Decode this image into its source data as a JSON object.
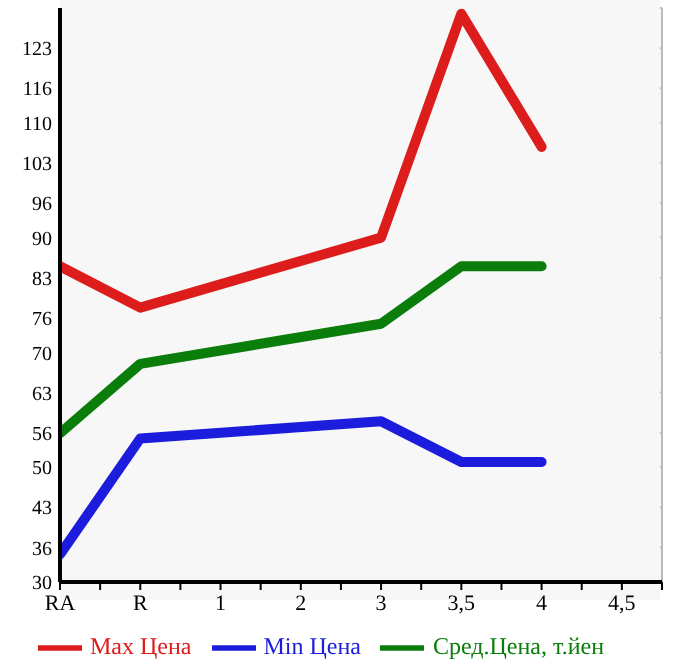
{
  "chart_data": {
    "type": "line",
    "categories": [
      "RA",
      "R",
      "1",
      "2",
      "3",
      "3,5",
      "4",
      "4,5"
    ],
    "series": [
      {
        "name": "Max Цена",
        "color": "#dd1c1c",
        "values": [
          85,
          77.8,
          null,
          null,
          90,
          129,
          105.8,
          null
        ]
      },
      {
        "name": "Min Цена",
        "color": "#1c1cdd",
        "values": [
          34.8,
          55,
          null,
          null,
          58,
          50.9,
          50.9,
          null
        ]
      },
      {
        "name": "Сред.Цена, т.йен",
        "color": "#0a7d0a",
        "values": [
          55.9,
          68,
          null,
          null,
          75,
          85,
          85,
          null
        ]
      }
    ],
    "ylim": [
      30,
      130
    ],
    "yticks": [
      30,
      36,
      43,
      50,
      56,
      63,
      70,
      76,
      83,
      90,
      96,
      103,
      110,
      116,
      123
    ],
    "grid": true,
    "legend": "bottom",
    "marker": "none",
    "line_style": "solid"
  }
}
